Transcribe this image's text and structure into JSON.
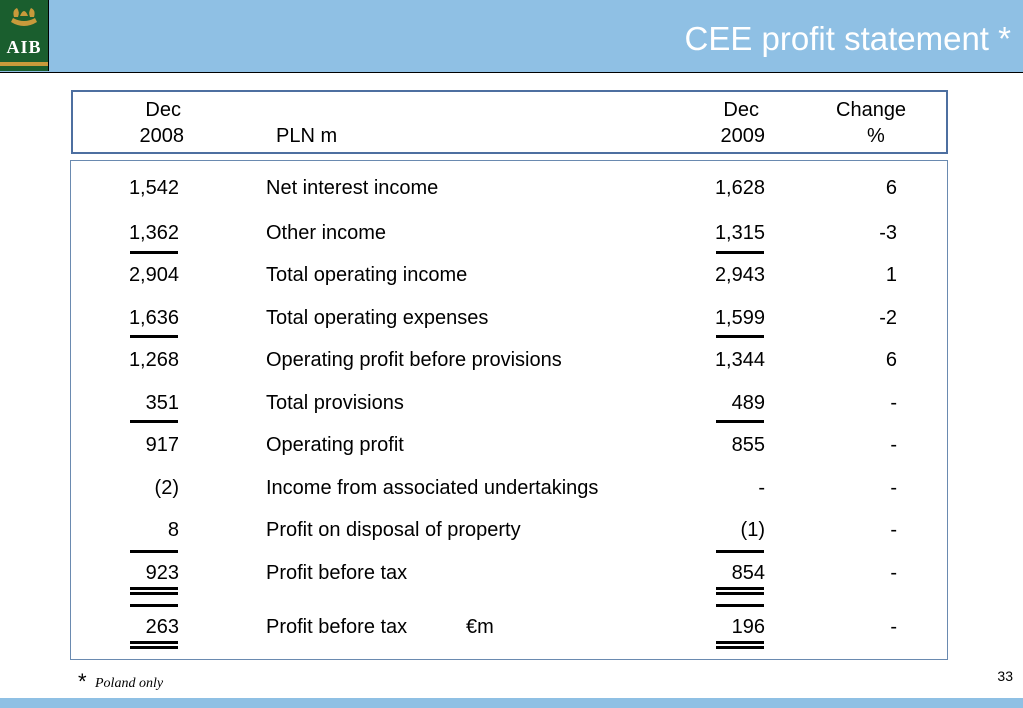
{
  "slide": {
    "title": "CEE profit statement *",
    "logo_text": "AIB",
    "page_number": "33",
    "footnote_marker": "*",
    "footnote_text": "Poland only"
  },
  "header": {
    "col_2008_line1": "Dec",
    "col_2008_line2": "2008",
    "currency_label": "PLN m",
    "col_2009_line1": "Dec",
    "col_2009_line2": "2009",
    "change_line1": "Change",
    "change_line2": "%"
  },
  "rows": [
    {
      "v2008": "1,542",
      "label": "Net interest income",
      "v2009": "1,628",
      "change": "6"
    },
    {
      "v2008": "1,362",
      "label": "Other income",
      "v2009": "1,315",
      "change": "-3"
    },
    {
      "v2008": "2,904",
      "label": "Total operating income",
      "v2009": "2,943",
      "change": "1"
    },
    {
      "v2008": "1,636",
      "label": "Total operating expenses",
      "v2009": "1,599",
      "change": "-2"
    },
    {
      "v2008": "1,268",
      "label": "Operating profit before provisions",
      "v2009": "1,344",
      "change": "6"
    },
    {
      "v2008": "351",
      "label": "Total provisions",
      "v2009": "489",
      "change": "-"
    },
    {
      "v2008": "917",
      "label": "Operating profit",
      "v2009": "855",
      "change": "-"
    },
    {
      "v2008": "(2)",
      "label": "Income from associated undertakings",
      "v2009": "-",
      "change": "-"
    },
    {
      "v2008": "8",
      "label": "Profit on disposal of property",
      "v2009": "(1)",
      "change": "-"
    },
    {
      "v2008": "923",
      "label": "Profit before tax",
      "v2009": "854",
      "change": "-"
    },
    {
      "v2008": "263",
      "label": "Profit before tax",
      "label_unit": "€m",
      "v2009": "196",
      "change": "-"
    }
  ],
  "colors": {
    "header_bg": "#8fc0e4",
    "logo_bg": "#1a5e2e",
    "logo_accent": "#c89a3b",
    "box_border": "#4d6fa0"
  },
  "icons": {
    "logo_emblem": "aib-ark-emblem-icon"
  }
}
